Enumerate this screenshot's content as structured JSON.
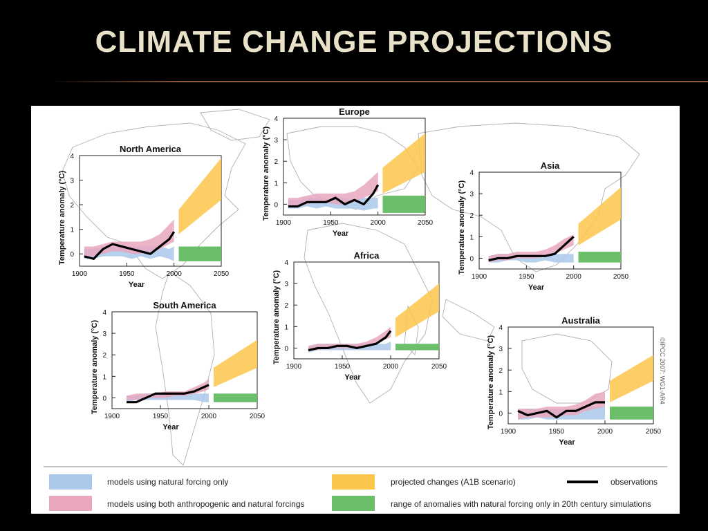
{
  "slide": {
    "title": "Climate Change Projections"
  },
  "credit": "©IPCC 2007: WG1-AR4",
  "colors": {
    "natural": "#a9c8ea",
    "both": "#e9a7c0",
    "projected": "#fcc64a",
    "range": "#6cbf6a",
    "observations": "#000000"
  },
  "legend": {
    "natural": "models using natural forcing only",
    "both": "models using both anthropogenic and natural forcings",
    "projected": "projected changes (A1B scenario)",
    "observations": "observations",
    "range": "range of anomalies with natural forcing only in 20th century simulations"
  },
  "chart_data": [
    {
      "type": "area",
      "title": "North America",
      "xlabel": "Year",
      "ylabel": "Temperature anomaly (°C)",
      "xlim": [
        1900,
        2050
      ],
      "ylim": [
        -0.5,
        4
      ],
      "xticks": [
        "1900",
        "1950",
        "2000",
        "2050"
      ],
      "yticks": [
        "0",
        "1",
        "2",
        "3",
        "4"
      ],
      "obs_x": [
        1905,
        1915,
        1925,
        1935,
        1945,
        1955,
        1965,
        1975,
        1985,
        1995,
        2000
      ],
      "obs_y": [
        -0.1,
        -0.2,
        0.2,
        0.4,
        0.3,
        0.2,
        0.1,
        0.0,
        0.3,
        0.6,
        0.9
      ],
      "natural_lo": [
        -0.2,
        -0.2,
        -0.1,
        -0.1,
        -0.1,
        -0.2,
        -0.1,
        -0.2,
        -0.1,
        -0.2,
        -0.3
      ],
      "natural_hi": [
        0.2,
        0.2,
        0.3,
        0.3,
        0.3,
        0.3,
        0.3,
        0.3,
        0.3,
        0.2,
        0.3
      ],
      "both_lo": [
        -0.1,
        -0.1,
        0.0,
        0.1,
        0.1,
        0.0,
        0.0,
        0.1,
        0.2,
        0.4,
        0.5
      ],
      "both_hi": [
        0.3,
        0.3,
        0.4,
        0.5,
        0.5,
        0.5,
        0.5,
        0.6,
        0.8,
        1.2,
        1.4
      ],
      "proj_x": [
        2005,
        2050
      ],
      "proj_lo": [
        0.8,
        2.2
      ],
      "proj_hi": [
        1.8,
        3.9
      ],
      "range_lo": -0.3,
      "range_hi": 0.3
    },
    {
      "type": "area",
      "title": "Europe",
      "xlabel": "Year",
      "ylabel": "Temperature anomaly (°C)",
      "xlim": [
        1900,
        2050
      ],
      "ylim": [
        -0.5,
        4
      ],
      "xticks": [
        "1900",
        "1950",
        "2000",
        "2050"
      ],
      "yticks": [
        "0",
        "1",
        "2",
        "3",
        "4"
      ],
      "obs_x": [
        1905,
        1915,
        1925,
        1935,
        1945,
        1955,
        1965,
        1975,
        1985,
        1995,
        2000
      ],
      "obs_y": [
        -0.1,
        -0.1,
        0.1,
        0.1,
        0.1,
        0.3,
        0.0,
        0.2,
        0.0,
        0.5,
        0.9
      ],
      "natural_lo": [
        -0.2,
        -0.2,
        -0.1,
        -0.2,
        -0.1,
        -0.2,
        -0.2,
        -0.2,
        -0.3,
        -0.2,
        -0.2
      ],
      "natural_hi": [
        0.2,
        0.2,
        0.3,
        0.3,
        0.2,
        0.3,
        0.3,
        0.2,
        0.3,
        0.3,
        0.3
      ],
      "both_lo": [
        -0.1,
        -0.1,
        0.0,
        0.1,
        0.1,
        0.0,
        0.0,
        0.1,
        0.3,
        0.5,
        0.6
      ],
      "both_hi": [
        0.3,
        0.3,
        0.4,
        0.5,
        0.5,
        0.5,
        0.5,
        0.6,
        0.9,
        1.3,
        1.5
      ],
      "proj_x": [
        2005,
        2050
      ],
      "proj_lo": [
        0.5,
        1.5
      ],
      "proj_hi": [
        1.7,
        3.3
      ],
      "range_lo": -0.4,
      "range_hi": 0.4
    },
    {
      "type": "area",
      "title": "Asia",
      "xlabel": "Year",
      "ylabel": "Temperature anomaly (°C)",
      "xlim": [
        1900,
        2050
      ],
      "ylim": [
        -0.5,
        4
      ],
      "xticks": [
        "1900",
        "1950",
        "2000",
        "2050"
      ],
      "yticks": [
        "0",
        "1",
        "2",
        "3",
        "4"
      ],
      "obs_x": [
        1910,
        1920,
        1930,
        1940,
        1950,
        1960,
        1970,
        1980,
        1990,
        2000
      ],
      "obs_y": [
        -0.1,
        0.0,
        0.0,
        0.1,
        0.1,
        0.1,
        0.1,
        0.2,
        0.6,
        1.0
      ],
      "natural_lo": [
        -0.2,
        -0.2,
        -0.1,
        -0.1,
        -0.2,
        -0.2,
        -0.1,
        -0.2,
        -0.2,
        -0.2
      ],
      "natural_hi": [
        0.1,
        0.2,
        0.2,
        0.2,
        0.2,
        0.2,
        0.2,
        0.2,
        0.2,
        0.2
      ],
      "both_lo": [
        -0.2,
        -0.1,
        -0.1,
        0.0,
        0.0,
        0.0,
        0.1,
        0.2,
        0.4,
        0.6
      ],
      "both_hi": [
        0.1,
        0.2,
        0.2,
        0.3,
        0.3,
        0.3,
        0.4,
        0.6,
        0.9,
        1.1
      ],
      "proj_x": [
        2005,
        2050
      ],
      "proj_lo": [
        0.6,
        1.8
      ],
      "proj_hi": [
        1.6,
        3.3
      ],
      "range_lo": -0.2,
      "range_hi": 0.3
    },
    {
      "type": "area",
      "title": "Africa",
      "xlabel": "Year",
      "ylabel": "Temperature anomaly (°C)",
      "xlim": [
        1900,
        2050
      ],
      "ylim": [
        -0.5,
        4
      ],
      "xticks": [
        "1900",
        "1950",
        "2000",
        "2050"
      ],
      "yticks": [
        "0",
        "1",
        "2",
        "3",
        "4"
      ],
      "obs_x": [
        1915,
        1925,
        1935,
        1945,
        1955,
        1965,
        1975,
        1985,
        1995,
        2000
      ],
      "obs_y": [
        -0.1,
        0.0,
        0.0,
        0.1,
        0.1,
        0.0,
        0.1,
        0.2,
        0.5,
        0.8
      ],
      "natural_lo": [
        -0.2,
        -0.1,
        -0.1,
        -0.1,
        -0.1,
        -0.1,
        -0.1,
        -0.1,
        -0.1,
        -0.1
      ],
      "natural_hi": [
        0.1,
        0.2,
        0.2,
        0.2,
        0.2,
        0.2,
        0.2,
        0.2,
        0.2,
        0.3
      ],
      "both_lo": [
        -0.1,
        -0.1,
        0.0,
        0.0,
        0.0,
        0.0,
        0.1,
        0.2,
        0.4,
        0.5
      ],
      "both_hi": [
        0.1,
        0.2,
        0.2,
        0.2,
        0.2,
        0.2,
        0.3,
        0.5,
        0.8,
        1.0
      ],
      "proj_x": [
        2005,
        2050
      ],
      "proj_lo": [
        0.5,
        1.7
      ],
      "proj_hi": [
        1.4,
        3.0
      ],
      "range_lo": -0.1,
      "range_hi": 0.2
    },
    {
      "type": "area",
      "title": "South America",
      "xlabel": "Year",
      "ylabel": "Temperature anomaly (°C)",
      "xlim": [
        1900,
        2050
      ],
      "ylim": [
        -0.5,
        4
      ],
      "xticks": [
        "1900",
        "1950",
        "2000",
        "2050"
      ],
      "yticks": [
        "0",
        "1",
        "2",
        "3",
        "4"
      ],
      "obs_x": [
        1915,
        1925,
        1935,
        1945,
        1955,
        1965,
        1975,
        1985,
        1995,
        2000
      ],
      "obs_y": [
        -0.2,
        -0.2,
        0.0,
        0.2,
        0.2,
        0.2,
        0.2,
        0.3,
        0.5,
        0.6
      ],
      "natural_lo": [
        -0.2,
        -0.1,
        -0.1,
        -0.1,
        -0.1,
        -0.1,
        -0.1,
        -0.1,
        -0.2,
        -0.2
      ],
      "natural_hi": [
        0.1,
        0.1,
        0.2,
        0.2,
        0.2,
        0.2,
        0.2,
        0.2,
        0.2,
        0.2
      ],
      "both_lo": [
        -0.1,
        -0.1,
        0.0,
        0.0,
        0.0,
        0.1,
        0.1,
        0.2,
        0.3,
        0.4
      ],
      "both_hi": [
        0.1,
        0.2,
        0.2,
        0.2,
        0.3,
        0.3,
        0.3,
        0.5,
        0.7,
        0.9
      ],
      "proj_x": [
        2005,
        2050
      ],
      "proj_lo": [
        0.5,
        1.4
      ],
      "proj_hi": [
        1.4,
        2.7
      ],
      "range_lo": -0.2,
      "range_hi": 0.2
    },
    {
      "type": "area",
      "title": "Australia",
      "xlabel": "Year",
      "ylabel": "Temperature anomaly (°C)",
      "xlim": [
        1900,
        2050
      ],
      "ylim": [
        -0.5,
        4
      ],
      "xticks": [
        "1900",
        "1950",
        "2000",
        "2050"
      ],
      "yticks": [
        "0",
        "1",
        "2",
        "3",
        "4"
      ],
      "obs_x": [
        1910,
        1920,
        1930,
        1940,
        1950,
        1960,
        1970,
        1980,
        1990,
        2000
      ],
      "obs_y": [
        0.1,
        -0.1,
        0.0,
        0.1,
        -0.2,
        0.1,
        0.1,
        0.3,
        0.5,
        0.5
      ],
      "natural_lo": [
        -0.3,
        -0.3,
        -0.2,
        -0.3,
        -0.3,
        -0.3,
        -0.3,
        -0.3,
        -0.3,
        -0.3
      ],
      "natural_hi": [
        0.2,
        0.2,
        0.2,
        0.2,
        0.2,
        0.2,
        0.2,
        0.3,
        0.3,
        0.3
      ],
      "both_lo": [
        -0.3,
        -0.2,
        -0.2,
        -0.2,
        -0.2,
        -0.1,
        -0.1,
        0.1,
        0.2,
        0.3
      ],
      "both_hi": [
        0.2,
        0.2,
        0.2,
        0.3,
        0.3,
        0.3,
        0.4,
        0.6,
        0.9,
        1.0
      ],
      "proj_x": [
        2005,
        2050
      ],
      "proj_lo": [
        0.5,
        1.5
      ],
      "proj_hi": [
        1.5,
        2.7
      ],
      "range_lo": -0.3,
      "range_hi": 0.3
    }
  ]
}
